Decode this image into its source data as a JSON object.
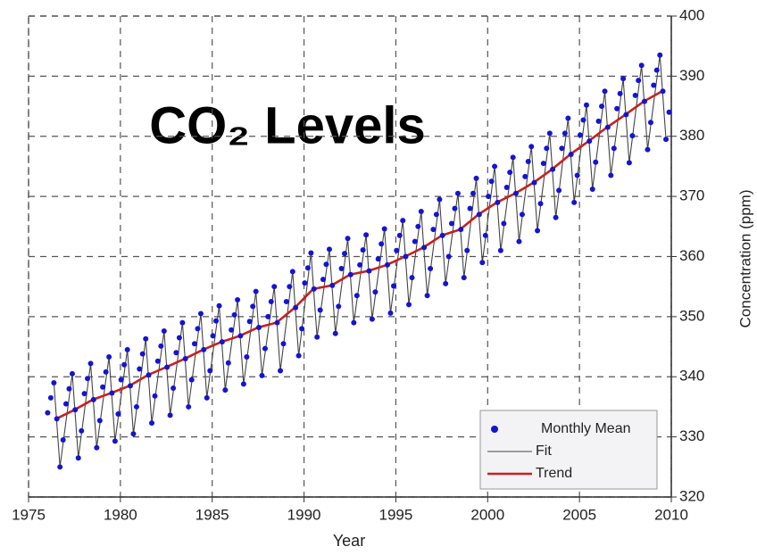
{
  "chart_data": {
    "type": "line",
    "title": "CO₂ Levels",
    "xlabel": "Year",
    "ylabel": "Concentration (ppm)",
    "xlim": [
      1975,
      2010
    ],
    "xticks": [
      1975,
      1980,
      1985,
      1990,
      1995,
      2000,
      2005,
      2010
    ],
    "ylim": [
      320,
      400
    ],
    "yticks": [
      320,
      330,
      340,
      350,
      360,
      370,
      380,
      390,
      400
    ],
    "grid": true,
    "legend": "lower right",
    "series": [
      {
        "name": "Monthly Mean",
        "type": "scatter",
        "color": "#1414d2",
        "x": [
          1976.04,
          1976.21,
          1976.38,
          1976.54,
          1976.71,
          1976.88,
          1977.04,
          1977.21,
          1977.38,
          1977.54,
          1977.71,
          1977.88,
          1978.04,
          1978.21,
          1978.38,
          1978.54,
          1978.71,
          1978.88,
          1979.04,
          1979.21,
          1979.38,
          1979.54,
          1979.71,
          1979.88,
          1980.04,
          1980.21,
          1980.38,
          1980.54,
          1980.71,
          1980.88,
          1981.04,
          1981.21,
          1981.38,
          1981.54,
          1981.71,
          1981.88,
          1982.04,
          1982.21,
          1982.38,
          1982.54,
          1982.71,
          1982.88,
          1983.04,
          1983.21,
          1983.38,
          1983.54,
          1983.71,
          1983.88,
          1984.04,
          1984.21,
          1984.38,
          1984.54,
          1984.71,
          1984.88,
          1985.04,
          1985.21,
          1985.38,
          1985.54,
          1985.71,
          1985.88,
          1986.04,
          1986.21,
          1986.38,
          1986.54,
          1986.71,
          1986.88,
          1987.04,
          1987.21,
          1987.38,
          1987.54,
          1987.71,
          1987.88,
          1988.04,
          1988.21,
          1988.38,
          1988.54,
          1988.71,
          1988.88,
          1989.04,
          1989.21,
          1989.38,
          1989.54,
          1989.71,
          1989.88,
          1990.04,
          1990.21,
          1990.38,
          1990.54,
          1990.71,
          1990.88,
          1991.04,
          1991.21,
          1991.38,
          1991.54,
          1991.71,
          1991.88,
          1992.04,
          1992.21,
          1992.38,
          1992.54,
          1992.71,
          1992.88,
          1993.04,
          1993.21,
          1993.38,
          1993.54,
          1993.71,
          1993.88,
          1994.04,
          1994.21,
          1994.38,
          1994.54,
          1994.71,
          1994.88,
          1995.04,
          1995.21,
          1995.38,
          1995.54,
          1995.71,
          1995.88,
          1996.04,
          1996.21,
          1996.38,
          1996.54,
          1996.71,
          1996.88,
          1997.04,
          1997.21,
          1997.38,
          1997.54,
          1997.71,
          1997.88,
          1998.04,
          1998.21,
          1998.38,
          1998.54,
          1998.71,
          1998.88,
          1999.04,
          1999.21,
          1999.38,
          1999.54,
          1999.71,
          1999.88,
          2000.04,
          2000.21,
          2000.38,
          2000.54,
          2000.71,
          2000.88,
          2001.04,
          2001.21,
          2001.38,
          2001.54,
          2001.71,
          2001.88,
          2002.04,
          2002.21,
          2002.38,
          2002.54,
          2002.71,
          2002.88,
          2003.04,
          2003.21,
          2003.38,
          2003.54,
          2003.71,
          2003.88,
          2004.04,
          2004.21,
          2004.38,
          2004.54,
          2004.71,
          2004.88,
          2005.04,
          2005.21,
          2005.38,
          2005.54,
          2005.71,
          2005.88,
          2006.04,
          2006.21,
          2006.38,
          2006.54,
          2006.71,
          2006.88,
          2007.04,
          2007.21,
          2007.38,
          2007.54,
          2007.71,
          2007.88,
          2008.04,
          2008.21,
          2008.38,
          2008.54,
          2008.71,
          2008.88,
          2009.04,
          2009.21,
          2009.38,
          2009.54,
          2009.71,
          2009.88
        ],
        "values": [
          334,
          336.5,
          339,
          333,
          325,
          329.5,
          335.5,
          338,
          340.5,
          334.5,
          326.5,
          331,
          337.2,
          339.7,
          342.2,
          336.2,
          328.2,
          332.7,
          338.3,
          340.8,
          343.3,
          337.3,
          329.3,
          333.8,
          339.5,
          342,
          344.5,
          338.5,
          330.5,
          335,
          341.3,
          343.8,
          346.3,
          340.3,
          332.3,
          336.8,
          342.6,
          345.1,
          347.6,
          341.6,
          333.6,
          338.1,
          344,
          346.5,
          349,
          343,
          335,
          339.5,
          345.5,
          348,
          350.5,
          344.5,
          336.5,
          341,
          346.8,
          349.3,
          351.8,
          345.8,
          337.8,
          342.3,
          347.8,
          350.3,
          352.8,
          346.8,
          338.8,
          343.3,
          349.2,
          351.7,
          354.2,
          348.2,
          340.2,
          344.7,
          350,
          352.5,
          355,
          349,
          341,
          345.5,
          352.5,
          355,
          357.5,
          351.5,
          343.5,
          348,
          355.6,
          358.1,
          360.6,
          354.6,
          346.6,
          351.1,
          356.2,
          358.7,
          361.2,
          355.2,
          347.2,
          351.7,
          358,
          360.5,
          363,
          357,
          349,
          353.5,
          358.6,
          361.1,
          363.6,
          357.6,
          349.6,
          354.1,
          359.6,
          362.1,
          364.6,
          358.6,
          350.6,
          355.1,
          361,
          363.5,
          366,
          360,
          352,
          356.5,
          362.5,
          365,
          367.5,
          361.5,
          353.5,
          358,
          364.5,
          367,
          369.5,
          363.5,
          355.5,
          360,
          365.5,
          368,
          370.5,
          364.5,
          356.5,
          361,
          368,
          370.5,
          373,
          367,
          359,
          363.5,
          370,
          372.5,
          375,
          369,
          361,
          365.5,
          371.5,
          374,
          376.5,
          370.5,
          362.5,
          367,
          373.3,
          375.8,
          378.3,
          372.3,
          364.3,
          368.8,
          375.5,
          378,
          380.5,
          374.5,
          366.5,
          371,
          378,
          380.5,
          383,
          377,
          369,
          373.5,
          380.2,
          382.7,
          385.2,
          379.2,
          371.2,
          375.7,
          382.5,
          385,
          387.5,
          381.5,
          373.5,
          378,
          384.6,
          387.1,
          389.6,
          383.6,
          375.6,
          380.1,
          386.8,
          389.3,
          391.8,
          385.8,
          377.8,
          382.3,
          388.5,
          391,
          393.5,
          387.5,
          379.5,
          384
        ]
      },
      {
        "name": "Fit",
        "type": "line",
        "color": "#444444",
        "x": [
          1976.38,
          1976.71,
          1977.38,
          1977.71,
          1978.38,
          1978.71,
          1979.38,
          1979.71,
          1980.38,
          1980.71,
          1981.38,
          1981.71,
          1982.38,
          1982.71,
          1983.38,
          1983.71,
          1984.38,
          1984.71,
          1985.38,
          1985.71,
          1986.38,
          1986.71,
          1987.38,
          1987.71,
          1988.38,
          1988.71,
          1989.38,
          1989.71,
          1990.38,
          1990.71,
          1991.38,
          1991.71,
          1992.38,
          1992.71,
          1993.38,
          1993.71,
          1994.38,
          1994.71,
          1995.38,
          1995.71,
          1996.38,
          1996.71,
          1997.38,
          1997.71,
          1998.38,
          1998.71,
          1999.38,
          1999.71,
          2000.38,
          2000.71,
          2001.38,
          2001.71,
          2002.38,
          2002.71,
          2003.38,
          2003.71,
          2004.38,
          2004.71,
          2005.38,
          2005.71,
          2006.38,
          2006.71,
          2007.38,
          2007.71,
          2008.38,
          2008.71,
          2009.38,
          2009.71
        ],
        "values": [
          339,
          325,
          340.5,
          326.5,
          342.2,
          328.2,
          343.3,
          329.3,
          344.5,
          330.5,
          346.3,
          332.3,
          347.6,
          333.6,
          349,
          335,
          350.5,
          336.5,
          351.8,
          337.8,
          352.8,
          338.8,
          354.2,
          340.2,
          355,
          341,
          357.5,
          343.5,
          360.6,
          346.6,
          361.2,
          347.2,
          363,
          349,
          363.6,
          349.6,
          364.6,
          350.6,
          366,
          352,
          367.5,
          353.5,
          369.5,
          355.5,
          370.5,
          356.5,
          373,
          359,
          375,
          361,
          376.5,
          362.5,
          378.3,
          364.3,
          380.5,
          366.5,
          383,
          369,
          385.2,
          371.2,
          387.5,
          373.5,
          389.6,
          375.6,
          391.8,
          377.8,
          393.5,
          379.5
        ]
      },
      {
        "name": "Trend",
        "type": "line",
        "color": "#c8201e",
        "x": [
          1976.5,
          1977.5,
          1978.5,
          1979.5,
          1980.5,
          1981.5,
          1982.5,
          1983.5,
          1984.5,
          1985.5,
          1986.5,
          1987.5,
          1988.5,
          1989.5,
          1990.5,
          1991.5,
          1992.5,
          1993.5,
          1994.5,
          1995.5,
          1996.5,
          1997.5,
          1998.5,
          1999.5,
          2000.5,
          2001.5,
          2002.5,
          2003.5,
          2004.5,
          2005.5,
          2006.5,
          2007.5,
          2008.5,
          2009.5
        ],
        "values": [
          333,
          334.5,
          336.2,
          337.3,
          338.5,
          340.3,
          341.6,
          343,
          344.5,
          345.8,
          346.8,
          348.2,
          349,
          351.5,
          354.6,
          355.2,
          357,
          357.6,
          358.6,
          360,
          361.5,
          363.5,
          364.5,
          367,
          369,
          370.5,
          372.3,
          374.5,
          377,
          379.2,
          381.5,
          383.6,
          385.8,
          387.5
        ]
      }
    ]
  }
}
